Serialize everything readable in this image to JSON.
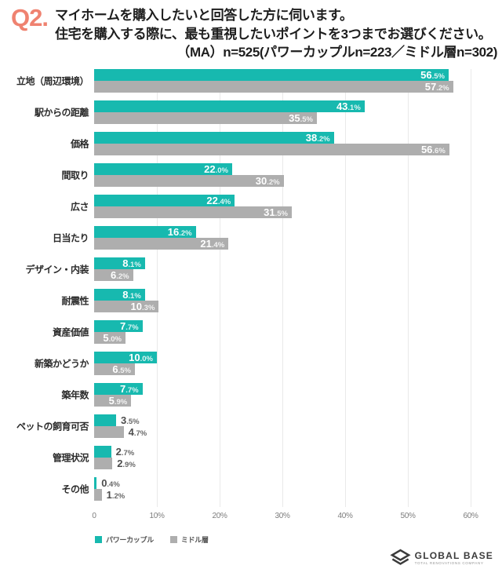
{
  "header": {
    "question_number": "Q2.",
    "title_line1": "マイホームを購入したいと回答した方に伺います。",
    "title_line2": "住宅を購入する際に、最も重視したいポイントを3つまでお選びください。",
    "subtitle": "（MA）n=525(パワーカップルn=223／ミドル層n=302)"
  },
  "chart_data": {
    "type": "bar",
    "orientation": "horizontal",
    "categories": [
      "立地（周辺環境）",
      "駅からの距離",
      "価格",
      "間取り",
      "広さ",
      "日当たり",
      "デザイン・内装",
      "耐震性",
      "資産価値",
      "新築かどうか",
      "築年数",
      "ペットの飼育可否",
      "管理状況",
      "その他"
    ],
    "series": [
      {
        "name": "パワーカップル",
        "color": "#17b9af",
        "values": [
          56.5,
          43.1,
          38.2,
          22.0,
          22.4,
          16.2,
          8.1,
          8.1,
          7.7,
          10.0,
          7.7,
          3.5,
          2.7,
          0.4
        ]
      },
      {
        "name": "ミドル層",
        "color": "#aeaeae",
        "values": [
          57.2,
          35.5,
          56.6,
          30.2,
          31.5,
          21.4,
          6.2,
          10.3,
          5.0,
          6.5,
          5.9,
          4.7,
          2.9,
          1.2
        ]
      }
    ],
    "value_suffix": "%",
    "xlim": [
      0,
      60
    ],
    "x_ticks": [
      "0",
      "10%",
      "20%",
      "30%",
      "40%",
      "50%",
      "60%"
    ],
    "grid": true,
    "legend_position": "bottom-left",
    "inside_label_min_value": 5
  },
  "footer": {
    "logo_text": "GLOBAL BASE",
    "logo_tagline": "TOTAL RENOVATIONS COMPANY"
  },
  "colors": {
    "accent_teal": "#17b9af",
    "bar_gray": "#aeaeae",
    "question_coral": "#ef8270"
  }
}
